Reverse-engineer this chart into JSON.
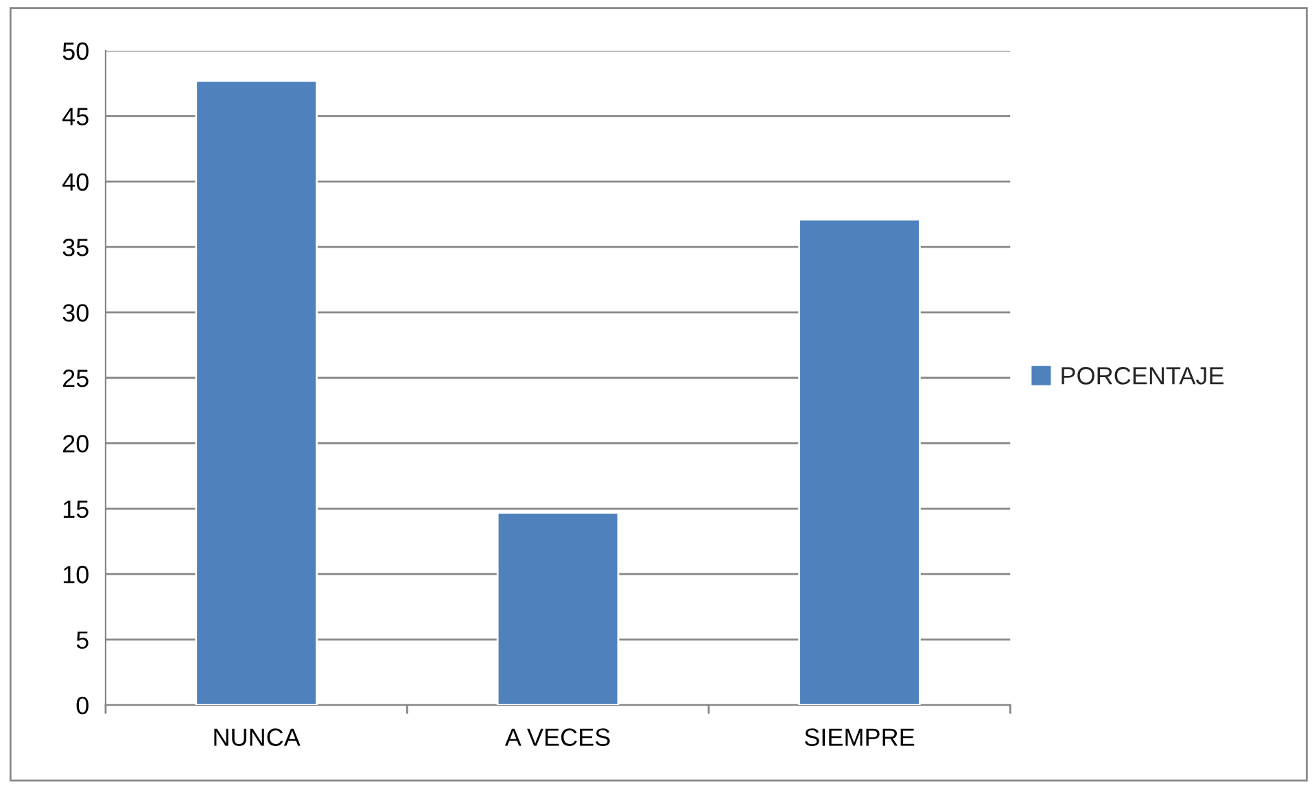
{
  "chart_data": {
    "type": "bar",
    "categories": [
      "NUNCA",
      "A VECES",
      "SIEMPRE"
    ],
    "series": [
      {
        "name": "PORCENTAJE",
        "color": "#4f81bd",
        "values": [
          47.7,
          14.7,
          37.1
        ]
      }
    ],
    "ylim": [
      0,
      50
    ],
    "yticks": [
      0,
      5,
      10,
      15,
      20,
      25,
      30,
      35,
      40,
      45,
      50
    ],
    "grid": "y",
    "legend": "right"
  }
}
